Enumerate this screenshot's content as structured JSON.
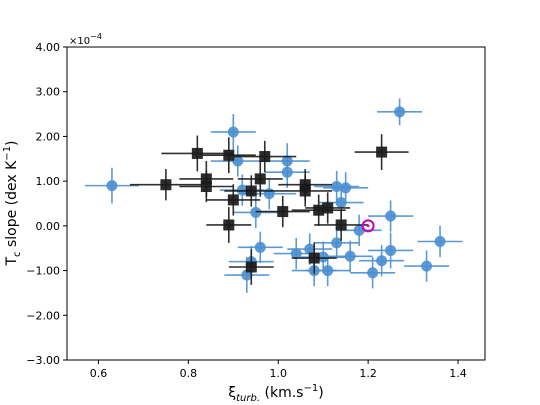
{
  "chart_data": {
    "type": "scatter",
    "xlabel": "ξ",
    "xlabel_sub": "turb.",
    "xlabel_units": " (km.s",
    "xlabel_exp": "−1",
    "xlabel_close": ")",
    "ylabel": "T",
    "ylabel_sub": "c",
    "ylabel_units": " slope (dex K",
    "ylabel_exp": "−1",
    "ylabel_close": ")",
    "y_multiplier": "×10",
    "y_multiplier_exp": "−4",
    "xlim": [
      0.53,
      1.46
    ],
    "ylim": [
      -3.0,
      4.0
    ],
    "x_ticks": [
      0.6,
      0.8,
      1.0,
      1.2,
      1.4
    ],
    "x_tick_labels": [
      "0.6",
      "0.8",
      "1.0",
      "1.2",
      "1.4"
    ],
    "y_ticks": [
      -3,
      -2,
      -1,
      0,
      1,
      2,
      3,
      4
    ],
    "y_tick_labels": [
      "−3.00",
      "−2.00",
      "−1.00",
      "0.00",
      "1.00",
      "2.00",
      "3.00",
      "4.00"
    ],
    "grid": false,
    "colors": {
      "circles": "#4a8fd0",
      "squares": "#1a1a1a",
      "reference": "#bf00bf"
    },
    "series": [
      {
        "marker": "circle",
        "color": "#4a8fd0",
        "points": [
          {
            "x": 0.63,
            "y": 0.9,
            "xerr": 0.06,
            "yerr": 0.4
          },
          {
            "x": 0.9,
            "y": 2.1,
            "xerr": 0.05,
            "yerr": 0.4
          },
          {
            "x": 0.91,
            "y": 1.45,
            "xerr": 0.06,
            "yerr": 0.35
          },
          {
            "x": 0.92,
            "y": 0.8,
            "xerr": 0.05,
            "yerr": 0.35
          },
          {
            "x": 0.93,
            "y": -1.1,
            "xerr": 0.05,
            "yerr": 0.4
          },
          {
            "x": 0.94,
            "y": -0.8,
            "xerr": 0.05,
            "yerr": 0.35
          },
          {
            "x": 0.95,
            "y": 0.3,
            "xerr": 0.05,
            "yerr": 0.35
          },
          {
            "x": 0.96,
            "y": -0.48,
            "xerr": 0.05,
            "yerr": 0.35
          },
          {
            "x": 0.98,
            "y": 0.72,
            "xerr": 0.06,
            "yerr": 0.35
          },
          {
            "x": 1.02,
            "y": 1.45,
            "xerr": 0.05,
            "yerr": 0.4
          },
          {
            "x": 1.02,
            "y": 1.2,
            "xerr": 0.05,
            "yerr": 0.35
          },
          {
            "x": 1.04,
            "y": -0.62,
            "xerr": 0.05,
            "yerr": 0.35
          },
          {
            "x": 1.07,
            "y": -0.52,
            "xerr": 0.05,
            "yerr": 0.35
          },
          {
            "x": 1.08,
            "y": -1.0,
            "xerr": 0.05,
            "yerr": 0.35
          },
          {
            "x": 1.1,
            "y": -0.7,
            "xerr": 0.05,
            "yerr": 0.35
          },
          {
            "x": 1.11,
            "y": -1.0,
            "xerr": 0.05,
            "yerr": 0.35
          },
          {
            "x": 1.13,
            "y": -0.38,
            "xerr": 0.05,
            "yerr": 0.35
          },
          {
            "x": 1.13,
            "y": 0.88,
            "xerr": 0.05,
            "yerr": 0.35
          },
          {
            "x": 1.14,
            "y": 0.52,
            "xerr": 0.05,
            "yerr": 0.35
          },
          {
            "x": 1.15,
            "y": 0.85,
            "xerr": 0.05,
            "yerr": 0.35
          },
          {
            "x": 1.16,
            "y": -0.68,
            "xerr": 0.05,
            "yerr": 0.35
          },
          {
            "x": 1.18,
            "y": -0.1,
            "xerr": 0.05,
            "yerr": 0.35
          },
          {
            "x": 1.21,
            "y": -1.05,
            "xerr": 0.05,
            "yerr": 0.35
          },
          {
            "x": 1.23,
            "y": -0.78,
            "xerr": 0.05,
            "yerr": 0.35
          },
          {
            "x": 1.25,
            "y": 0.22,
            "xerr": 0.05,
            "yerr": 0.35
          },
          {
            "x": 1.25,
            "y": -0.55,
            "xerr": 0.05,
            "yerr": 0.4
          },
          {
            "x": 1.27,
            "y": 2.55,
            "xerr": 0.05,
            "yerr": 0.3
          },
          {
            "x": 1.33,
            "y": -0.9,
            "xerr": 0.05,
            "yerr": 0.35
          },
          {
            "x": 1.36,
            "y": -0.35,
            "xerr": 0.05,
            "yerr": 0.35
          }
        ]
      },
      {
        "marker": "square",
        "color": "#1a1a1a",
        "points": [
          {
            "x": 0.75,
            "y": 0.92,
            "xerr": 0.08,
            "yerr": 0.35
          },
          {
            "x": 0.82,
            "y": 1.62,
            "xerr": 0.08,
            "yerr": 0.4
          },
          {
            "x": 0.84,
            "y": 1.05,
            "xerr": 0.06,
            "yerr": 0.4
          },
          {
            "x": 0.84,
            "y": 0.88,
            "xerr": 0.06,
            "yerr": 0.35
          },
          {
            "x": 0.89,
            "y": 1.58,
            "xerr": 0.06,
            "yerr": 0.4
          },
          {
            "x": 0.89,
            "y": 0.02,
            "xerr": 0.05,
            "yerr": 0.4
          },
          {
            "x": 0.9,
            "y": 0.58,
            "xerr": 0.06,
            "yerr": 0.35
          },
          {
            "x": 0.94,
            "y": 0.78,
            "xerr": 0.06,
            "yerr": 0.35
          },
          {
            "x": 0.94,
            "y": -0.92,
            "xerr": 0.05,
            "yerr": 0.4
          },
          {
            "x": 0.96,
            "y": 1.05,
            "xerr": 0.05,
            "yerr": 0.4
          },
          {
            "x": 0.97,
            "y": 1.55,
            "xerr": 0.07,
            "yerr": 0.35
          },
          {
            "x": 1.01,
            "y": 0.32,
            "xerr": 0.06,
            "yerr": 0.35
          },
          {
            "x": 1.06,
            "y": 0.92,
            "xerr": 0.06,
            "yerr": 0.35
          },
          {
            "x": 1.06,
            "y": 0.78,
            "xerr": 0.06,
            "yerr": 0.35
          },
          {
            "x": 1.08,
            "y": -0.72,
            "xerr": 0.05,
            "yerr": 0.35
          },
          {
            "x": 1.09,
            "y": 0.35,
            "xerr": 0.06,
            "yerr": 0.35
          },
          {
            "x": 1.11,
            "y": 0.4,
            "xerr": 0.05,
            "yerr": 0.35
          },
          {
            "x": 1.14,
            "y": 0.02,
            "xerr": 0.06,
            "yerr": 0.35
          },
          {
            "x": 1.23,
            "y": 1.65,
            "xerr": 0.06,
            "yerr": 0.4
          }
        ]
      },
      {
        "marker": "sun",
        "color": "#bf00bf",
        "points": [
          {
            "x": 1.2,
            "y": 0.0
          }
        ]
      }
    ]
  }
}
